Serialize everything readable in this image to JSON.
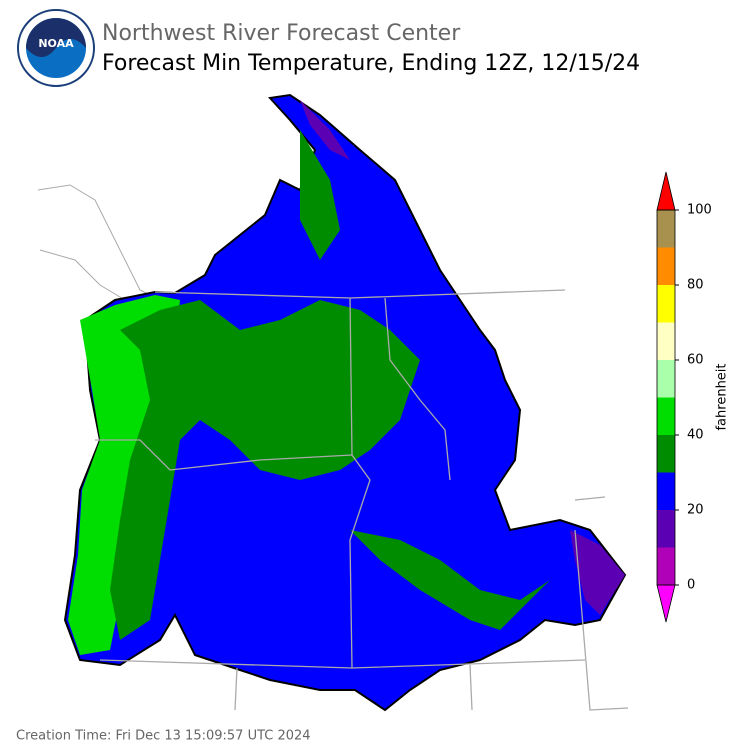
{
  "header": {
    "title": "Northwest River Forecast Center",
    "subtitle": "Forecast Min Temperature, Ending 12Z, 12/15/24"
  },
  "colorbar": {
    "label": "fahrenheit",
    "lim": [
      0,
      100
    ],
    "ticks": [
      0,
      20,
      40,
      60,
      80,
      100
    ],
    "bounds": [
      0,
      10,
      20,
      30,
      40,
      50,
      60,
      70,
      80,
      90,
      100
    ],
    "colors": [
      "#b000b8",
      "#5c00b4",
      "#0000ff",
      "#008c00",
      "#00dd00",
      "#aaffaa",
      "#ffffc4",
      "#ffff00",
      "#ff8c00",
      "#a8904e"
    ],
    "under_color": "#ff00ff",
    "over_color": "#ff0000"
  },
  "footer": {
    "creation_time": "Creation Time: Fri Dec 13 15:09:57 UTC 2024"
  }
}
